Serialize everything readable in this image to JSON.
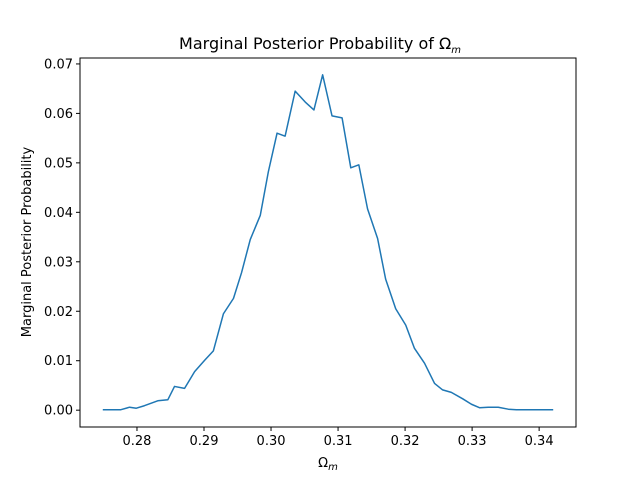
{
  "chart_data": {
    "type": "line",
    "title": "Marginal Posterior Probability of Ω",
    "title_subscript": "m",
    "xlabel": "Ω",
    "xlabel_subscript": "m",
    "ylabel": "Marginal Posterior Probability",
    "xlim": [
      0.2715,
      0.3455
    ],
    "ylim": [
      -0.0034,
      0.0712
    ],
    "x_ticks": [
      0.28,
      0.29,
      0.3,
      0.31,
      0.32,
      0.33,
      0.34
    ],
    "x_tick_labels": [
      "0.28",
      "0.29",
      "0.30",
      "0.31",
      "0.32",
      "0.33",
      "0.34"
    ],
    "y_ticks": [
      0.0,
      0.01,
      0.02,
      0.03,
      0.04,
      0.05,
      0.06,
      0.07
    ],
    "y_tick_labels": [
      "0.00",
      "0.01",
      "0.02",
      "0.03",
      "0.04",
      "0.05",
      "0.06",
      "0.07"
    ],
    "grid": false,
    "line_color": "#1f77b4",
    "series": [
      {
        "x": [
          0.2749,
          0.2766,
          0.2776,
          0.2789,
          0.2799,
          0.2811,
          0.2831,
          0.2846,
          0.2856,
          0.2871,
          0.2886,
          0.2901,
          0.2914,
          0.2929,
          0.2944,
          0.2956,
          0.2969,
          0.2984,
          0.2996,
          0.3009,
          0.3021,
          0.3036,
          0.3051,
          0.3064,
          0.3077,
          0.3091,
          0.3106,
          0.3119,
          0.3131,
          0.3144,
          0.3159,
          0.3171,
          0.3186,
          0.3201,
          0.3214,
          0.3229,
          0.3244,
          0.3256,
          0.3269,
          0.3286,
          0.3299,
          0.3311,
          0.3324,
          0.3339,
          0.3354,
          0.3366,
          0.3379,
          0.3394,
          0.3406,
          0.3421
        ],
        "y": [
          0.0001,
          0.0001,
          0.0001,
          0.0006,
          0.0004,
          0.0009,
          0.0019,
          0.0021,
          0.0048,
          0.0044,
          0.0078,
          0.0101,
          0.012,
          0.0195,
          0.0226,
          0.0278,
          0.0345,
          0.0394,
          0.0482,
          0.056,
          0.0554,
          0.0645,
          0.0623,
          0.0607,
          0.0678,
          0.0595,
          0.0591,
          0.049,
          0.0496,
          0.0407,
          0.0347,
          0.0265,
          0.0205,
          0.0172,
          0.0125,
          0.0095,
          0.0054,
          0.0041,
          0.0036,
          0.0023,
          0.0012,
          0.0005,
          0.0006,
          0.0006,
          0.0002,
          0.0001,
          0.0001,
          0.0001,
          0.0001,
          0.0001
        ]
      }
    ]
  }
}
